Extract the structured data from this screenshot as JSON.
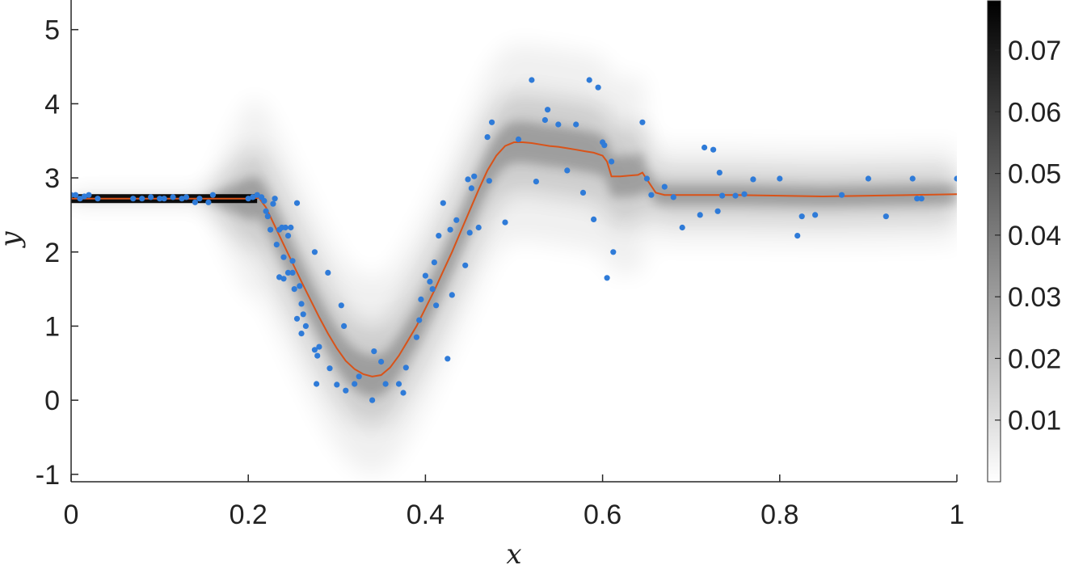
{
  "chart_data": {
    "type": "scatter",
    "xlabel": "x",
    "ylabel": "y",
    "xlim": [
      0,
      1
    ],
    "ylim": [
      -1.1,
      5.4
    ],
    "x_ticks": [
      0,
      0.2,
      0.4,
      0.6,
      0.8,
      1
    ],
    "x_tick_labels": [
      "0",
      "0.2",
      "0.4",
      "0.6",
      "0.8",
      "1"
    ],
    "y_ticks": [
      -1,
      0,
      1,
      2,
      3,
      4,
      5
    ],
    "y_tick_labels": [
      "-1",
      "0",
      "1",
      "2",
      "3",
      "4",
      "5"
    ],
    "grid": false,
    "colorbar": {
      "colormap": "gray-reversed",
      "range": [
        0,
        0.078
      ],
      "ticks": [
        0.01,
        0.02,
        0.03,
        0.04,
        0.05,
        0.06,
        0.07
      ],
      "tick_labels": [
        "0.01",
        "0.02",
        "0.03",
        "0.04",
        "0.05",
        "0.06",
        "0.07"
      ]
    },
    "colors": {
      "points": "#2f7bd8",
      "mean_line": "#d95319",
      "density": "#000000",
      "axes": "#262626"
    },
    "series": [
      {
        "type": "scatter",
        "x": [
          0.0,
          0.005,
          0.01,
          0.015,
          0.02,
          0.03,
          0.07,
          0.08,
          0.09,
          0.1,
          0.105,
          0.115,
          0.125,
          0.13,
          0.14,
          0.145,
          0.155,
          0.16,
          0.2,
          0.205,
          0.21,
          0.215,
          0.218,
          0.22,
          0.222,
          0.225,
          0.228,
          0.23,
          0.232,
          0.235,
          0.235,
          0.238,
          0.24,
          0.24,
          0.242,
          0.245,
          0.245,
          0.248,
          0.25,
          0.25,
          0.252,
          0.255,
          0.255,
          0.258,
          0.26,
          0.26,
          0.262,
          0.265,
          0.275,
          0.275,
          0.277,
          0.278,
          0.28,
          0.29,
          0.292,
          0.3,
          0.305,
          0.308,
          0.31,
          0.32,
          0.325,
          0.34,
          0.342,
          0.35,
          0.355,
          0.37,
          0.375,
          0.378,
          0.39,
          0.393,
          0.395,
          0.4,
          0.405,
          0.408,
          0.41,
          0.412,
          0.415,
          0.42,
          0.425,
          0.428,
          0.43,
          0.435,
          0.445,
          0.448,
          0.45,
          0.452,
          0.455,
          0.46,
          0.47,
          0.472,
          0.475,
          0.49,
          0.505,
          0.52,
          0.525,
          0.535,
          0.538,
          0.55,
          0.56,
          0.57,
          0.578,
          0.585,
          0.59,
          0.595,
          0.6,
          0.602,
          0.605,
          0.61,
          0.612,
          0.645,
          0.65,
          0.655,
          0.67,
          0.68,
          0.69,
          0.71,
          0.715,
          0.725,
          0.73,
          0.732,
          0.735,
          0.75,
          0.76,
          0.77,
          0.8,
          0.82,
          0.825,
          0.84,
          0.87,
          0.9,
          0.92,
          0.95,
          0.955,
          0.96,
          1.0
        ],
        "y": [
          2.77,
          2.77,
          2.72,
          2.75,
          2.77,
          2.72,
          2.72,
          2.72,
          2.74,
          2.72,
          2.72,
          2.74,
          2.72,
          2.74,
          2.67,
          2.72,
          2.67,
          2.77,
          2.72,
          2.74,
          2.77,
          2.74,
          2.69,
          2.55,
          2.48,
          2.3,
          2.65,
          2.72,
          2.1,
          2.3,
          1.66,
          2.33,
          1.93,
          1.64,
          2.33,
          2.22,
          1.72,
          2.33,
          1.88,
          1.72,
          1.5,
          1.1,
          2.66,
          1.54,
          1.3,
          0.9,
          1.16,
          1.0,
          0.68,
          2.0,
          0.22,
          0.6,
          0.72,
          1.72,
          0.43,
          0.21,
          1.28,
          1.0,
          0.13,
          0.22,
          0.32,
          0.0,
          0.66,
          0.52,
          0.22,
          0.22,
          0.1,
          0.44,
          0.85,
          1.08,
          1.36,
          1.68,
          1.6,
          1.5,
          1.86,
          1.28,
          2.22,
          2.66,
          0.56,
          2.3,
          1.42,
          2.43,
          1.82,
          2.98,
          2.26,
          2.86,
          3.02,
          2.33,
          3.55,
          2.96,
          3.75,
          2.4,
          3.52,
          4.32,
          2.95,
          3.78,
          3.92,
          3.72,
          3.1,
          3.72,
          2.8,
          4.32,
          2.44,
          4.22,
          3.48,
          3.44,
          1.65,
          3.22,
          2.0,
          3.75,
          2.99,
          2.77,
          2.88,
          2.74,
          2.33,
          2.5,
          3.41,
          3.38,
          2.55,
          3.07,
          2.76,
          2.76,
          2.78,
          2.98,
          2.99,
          2.22,
          2.48,
          2.5,
          2.77,
          2.99,
          2.48,
          2.99,
          2.72,
          2.72,
          2.99
        ]
      },
      {
        "type": "line",
        "x": [
          0.0,
          0.05,
          0.1,
          0.15,
          0.2,
          0.212,
          0.22,
          0.23,
          0.24,
          0.25,
          0.26,
          0.27,
          0.28,
          0.29,
          0.3,
          0.31,
          0.32,
          0.33,
          0.34,
          0.35,
          0.36,
          0.37,
          0.38,
          0.39,
          0.4,
          0.41,
          0.42,
          0.43,
          0.44,
          0.45,
          0.46,
          0.47,
          0.48,
          0.49,
          0.5,
          0.51,
          0.52,
          0.53,
          0.54,
          0.55,
          0.56,
          0.57,
          0.58,
          0.59,
          0.6,
          0.605,
          0.61,
          0.62,
          0.63,
          0.64,
          0.645,
          0.65,
          0.66,
          0.67,
          0.7,
          0.75,
          0.8,
          0.85,
          0.9,
          0.95,
          1.0
        ],
        "y": [
          2.72,
          2.72,
          2.72,
          2.72,
          2.72,
          2.73,
          2.6,
          2.35,
          2.1,
          1.85,
          1.6,
          1.36,
          1.12,
          0.9,
          0.7,
          0.53,
          0.42,
          0.35,
          0.32,
          0.34,
          0.44,
          0.6,
          0.8,
          1.0,
          1.24,
          1.48,
          1.74,
          2.0,
          2.28,
          2.56,
          2.84,
          3.1,
          3.3,
          3.43,
          3.48,
          3.48,
          3.47,
          3.45,
          3.43,
          3.42,
          3.4,
          3.38,
          3.36,
          3.34,
          3.3,
          3.22,
          3.02,
          3.02,
          3.03,
          3.04,
          3.07,
          2.98,
          2.8,
          2.77,
          2.77,
          2.77,
          2.76,
          2.75,
          2.76,
          2.77,
          2.78
        ]
      }
    ]
  }
}
